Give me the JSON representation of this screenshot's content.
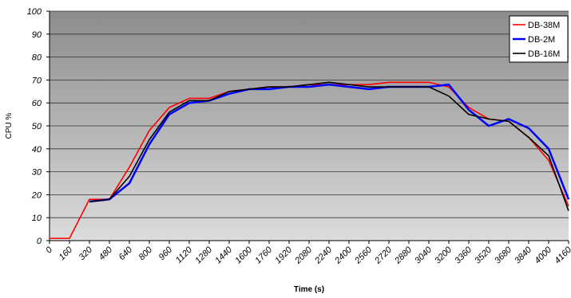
{
  "chart_data": {
    "type": "line",
    "xlabel": "Time (s)",
    "ylabel": "CPU %",
    "x": [
      0,
      160,
      320,
      480,
      640,
      800,
      960,
      1120,
      1280,
      1440,
      1600,
      1760,
      1920,
      2080,
      2240,
      2400,
      2560,
      2720,
      2880,
      3040,
      3200,
      3360,
      3520,
      3680,
      3840,
      4000,
      4160
    ],
    "series": [
      {
        "name": "DB-38M",
        "color": "#ff0000",
        "values": [
          1,
          1,
          18,
          18,
          32,
          48,
          58,
          62,
          62,
          65,
          66,
          67,
          67,
          68,
          68,
          68,
          68,
          69,
          69,
          69,
          67,
          58,
          53,
          52,
          45,
          35,
          15
        ]
      },
      {
        "name": "DB-2M",
        "color": "#0000ff",
        "values": [
          null,
          null,
          17,
          18,
          25,
          42,
          55,
          60,
          61,
          64,
          66,
          66,
          67,
          67,
          68,
          67,
          66,
          67,
          67,
          67,
          68,
          57,
          50,
          53,
          49,
          40,
          18
        ]
      },
      {
        "name": "DB-16M",
        "color": "#000000",
        "values": [
          null,
          null,
          17,
          18,
          28,
          44,
          56,
          61,
          61,
          65,
          66,
          67,
          67,
          68,
          69,
          68,
          67,
          67,
          67,
          67,
          63,
          55,
          53,
          52,
          45,
          37,
          13
        ]
      }
    ],
    "xlim": [
      0,
      4160
    ],
    "xticks": [
      0,
      160,
      320,
      480,
      640,
      800,
      960,
      1120,
      1280,
      1440,
      1600,
      1760,
      1920,
      2080,
      2240,
      2400,
      2560,
      2720,
      2880,
      3040,
      3200,
      3360,
      3520,
      3680,
      3840,
      4000,
      4160
    ],
    "ylim": [
      0,
      100
    ],
    "yticks": [
      0,
      10,
      20,
      30,
      40,
      50,
      60,
      70,
      80,
      90,
      100
    ],
    "grid": true,
    "legend": "upper right"
  }
}
